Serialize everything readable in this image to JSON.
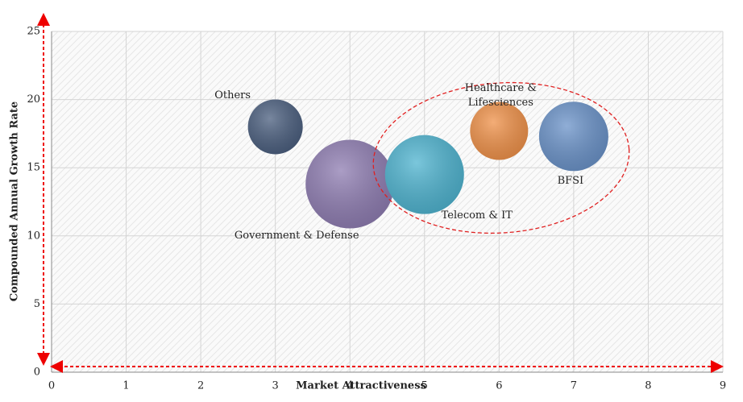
{
  "chart_data": {
    "type": "bubble",
    "x_label": "Market Attractiveness",
    "y_label": "Compounded Annual Growth Rate",
    "xlim": [
      0,
      9
    ],
    "xticks": [
      0,
      1,
      2,
      3,
      4,
      5,
      6,
      7,
      8,
      9
    ],
    "ylim": [
      0,
      25
    ],
    "yticks": [
      0,
      5,
      10,
      15,
      20,
      25
    ],
    "grid": true,
    "series": [
      {
        "name": "Others",
        "color": "#4b5f7f",
        "x": [
          3
        ],
        "values": [
          18
        ],
        "sizes": [
          34
        ]
      },
      {
        "name": "Government & Defense",
        "color": "#8f7db2",
        "x": [
          4
        ],
        "values": [
          13.8
        ],
        "sizes": [
          55
        ]
      },
      {
        "name": "Telecom & IT",
        "color": "#4fb4d0",
        "x": [
          5
        ],
        "values": [
          14.5
        ],
        "sizes": [
          49
        ]
      },
      {
        "name": "Healthcare & Lifesciences",
        "color": "#f0924a",
        "x": [
          6
        ],
        "values": [
          17.7
        ],
        "sizes": [
          36
        ]
      },
      {
        "name": "BFSI",
        "color": "#6b93c9",
        "x": [
          7
        ],
        "values": [
          17.3
        ],
        "sizes": [
          43
        ]
      }
    ]
  }
}
